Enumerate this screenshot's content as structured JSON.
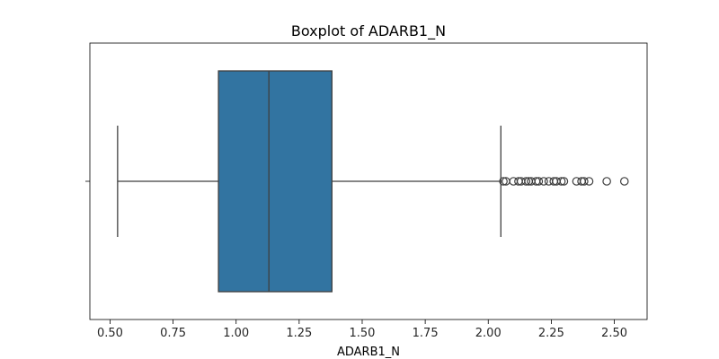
{
  "chart_data": {
    "type": "boxplot",
    "title": "Boxplot of ADARB1_N",
    "xlabel": "ADARB1_N",
    "ylabel": "",
    "xlim": [
      0.42,
      2.63
    ],
    "xticks": [
      0.5,
      0.75,
      1.0,
      1.25,
      1.5,
      1.75,
      2.0,
      2.25,
      2.5
    ],
    "xtick_labels": [
      "0.50",
      "0.75",
      "1.00",
      "1.25",
      "1.50",
      "1.75",
      "2.00",
      "2.25",
      "2.50"
    ],
    "grid": false,
    "box": {
      "whisker_low": 0.53,
      "q1": 0.93,
      "median": 1.13,
      "q3": 1.38,
      "whisker_high": 2.05,
      "outliers": [
        2.06,
        2.07,
        2.1,
        2.12,
        2.13,
        2.15,
        2.16,
        2.17,
        2.19,
        2.2,
        2.22,
        2.24,
        2.26,
        2.27,
        2.29,
        2.3,
        2.35,
        2.37,
        2.38,
        2.4,
        2.47,
        2.54
      ]
    },
    "colors": {
      "box_fill": "#3274a1",
      "line": "#3f3f3f",
      "outlier_edge": "#3f3f3f"
    }
  }
}
